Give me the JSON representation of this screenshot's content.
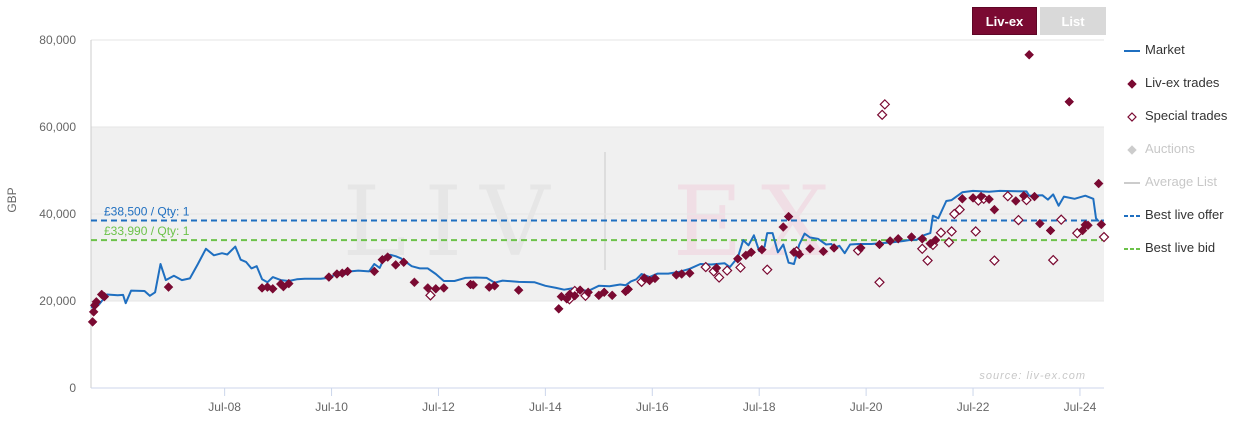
{
  "tabs": [
    {
      "label": "Liv-ex",
      "active": true
    },
    {
      "label": "List",
      "active": false
    }
  ],
  "legend": [
    {
      "label": "Market",
      "symbol": "line",
      "color": "#1f6fc0"
    },
    {
      "label": "Liv-ex trades",
      "symbol": "diamond-filled",
      "color": "#7a0a32"
    },
    {
      "label": "Special trades",
      "symbol": "diamond-open",
      "color": "#7a0a32"
    },
    {
      "label": "Auctions",
      "symbol": "diamond-filled",
      "color": "#cccccc",
      "dimmed": true
    },
    {
      "label": "Average List",
      "symbol": "line",
      "color": "#cccccc",
      "dimmed": true
    },
    {
      "label": "Best live offer",
      "symbol": "dashed",
      "color": "#1f6fc0"
    },
    {
      "label": "Best live bid",
      "symbol": "dashed",
      "color": "#6cc24a"
    }
  ],
  "chart_data": {
    "type": "line",
    "ylabel": "GBP",
    "ylim": [
      0,
      80000
    ],
    "yticks": [
      {
        "value": 0,
        "label": "0"
      },
      {
        "value": 20000,
        "label": "20,000"
      },
      {
        "value": 40000,
        "label": "40,000"
      },
      {
        "value": 60000,
        "label": "60,000"
      },
      {
        "value": 80000,
        "label": "80,000"
      }
    ],
    "xlim": [
      2006.0,
      2024.95
    ],
    "xticks": [
      {
        "value": 2008.5,
        "label": "Jul-08"
      },
      {
        "value": 2010.5,
        "label": "Jul-10"
      },
      {
        "value": 2012.5,
        "label": "Jul-12"
      },
      {
        "value": 2014.5,
        "label": "Jul-14"
      },
      {
        "value": 2016.5,
        "label": "Jul-16"
      },
      {
        "value": 2018.5,
        "label": "Jul-18"
      },
      {
        "value": 2020.5,
        "label": "Jul-20"
      },
      {
        "value": 2022.5,
        "label": "Jul-22"
      },
      {
        "value": 2024.5,
        "label": "Jul-24"
      }
    ],
    "shaded_band": [
      20000,
      60000
    ],
    "watermark": "LIV|EX",
    "source": "source: liv-ex.com",
    "best_live_offer": {
      "value": 38500,
      "label": "£38,500 / Qty: 1",
      "color": "#1f6fc0"
    },
    "best_live_bid": {
      "value": 33990,
      "label": "£33,990 / Qty: 1",
      "color": "#6cc24a"
    },
    "market": {
      "name": "Market",
      "color": "#1f6fc0",
      "points": [
        [
          2006.0,
          18500
        ],
        [
          2006.15,
          19200
        ],
        [
          2006.3,
          21500
        ],
        [
          2006.5,
          21300
        ],
        [
          2006.6,
          21400
        ],
        [
          2006.65,
          19500
        ],
        [
          2006.75,
          22400
        ],
        [
          2007.0,
          22300
        ],
        [
          2007.1,
          21200
        ],
        [
          2007.2,
          22000
        ],
        [
          2007.3,
          28500
        ],
        [
          2007.4,
          24800
        ],
        [
          2007.55,
          25800
        ],
        [
          2007.7,
          24800
        ],
        [
          2007.85,
          25200
        ],
        [
          2008.0,
          28500
        ],
        [
          2008.15,
          32000
        ],
        [
          2008.3,
          30500
        ],
        [
          2008.45,
          31000
        ],
        [
          2008.55,
          30700
        ],
        [
          2008.7,
          32500
        ],
        [
          2008.8,
          29500
        ],
        [
          2008.9,
          29000
        ],
        [
          2009.0,
          27500
        ],
        [
          2009.1,
          28000
        ],
        [
          2009.2,
          25000
        ],
        [
          2009.3,
          24300
        ],
        [
          2009.4,
          25500
        ],
        [
          2009.55,
          24800
        ],
        [
          2009.7,
          24600
        ],
        [
          2009.85,
          25000
        ],
        [
          2010.0,
          25100
        ],
        [
          2010.3,
          25100
        ],
        [
          2010.5,
          25400
        ],
        [
          2010.6,
          26800
        ],
        [
          2010.7,
          25800
        ],
        [
          2010.85,
          26800
        ],
        [
          2011.0,
          27000
        ],
        [
          2011.2,
          26800
        ],
        [
          2011.3,
          28500
        ],
        [
          2011.4,
          27600
        ],
        [
          2011.5,
          30300
        ],
        [
          2011.6,
          30600
        ],
        [
          2011.7,
          30300
        ],
        [
          2011.8,
          29800
        ],
        [
          2012.0,
          28000
        ],
        [
          2012.15,
          27500
        ],
        [
          2012.3,
          27500
        ],
        [
          2012.45,
          26200
        ],
        [
          2012.6,
          24600
        ],
        [
          2012.8,
          24600
        ],
        [
          2013.0,
          25300
        ],
        [
          2013.2,
          25400
        ],
        [
          2013.4,
          25300
        ],
        [
          2013.55,
          24200
        ],
        [
          2013.7,
          24700
        ],
        [
          2014.0,
          24400
        ],
        [
          2014.3,
          24300
        ],
        [
          2014.5,
          23500
        ],
        [
          2014.7,
          23000
        ],
        [
          2014.85,
          22600
        ],
        [
          2015.0,
          22900
        ],
        [
          2015.15,
          22600
        ],
        [
          2015.3,
          22300
        ],
        [
          2015.5,
          23500
        ],
        [
          2015.7,
          23400
        ],
        [
          2015.9,
          23800
        ],
        [
          2016.0,
          23600
        ],
        [
          2016.1,
          24500
        ],
        [
          2016.2,
          25000
        ],
        [
          2016.3,
          26200
        ],
        [
          2016.45,
          25500
        ],
        [
          2016.6,
          26300
        ],
        [
          2016.8,
          26300
        ],
        [
          2017.0,
          26700
        ],
        [
          2017.2,
          27400
        ],
        [
          2017.4,
          28500
        ],
        [
          2017.6,
          28400
        ],
        [
          2017.85,
          28700
        ],
        [
          2017.95,
          27800
        ],
        [
          2018.1,
          30000
        ],
        [
          2018.2,
          34000
        ],
        [
          2018.3,
          32800
        ],
        [
          2018.4,
          35100
        ],
        [
          2018.5,
          31500
        ],
        [
          2018.6,
          32500
        ],
        [
          2018.65,
          35600
        ],
        [
          2018.75,
          35600
        ],
        [
          2018.85,
          31200
        ],
        [
          2018.95,
          33000
        ],
        [
          2019.05,
          28800
        ],
        [
          2019.15,
          28500
        ],
        [
          2019.25,
          33000
        ],
        [
          2019.35,
          35500
        ],
        [
          2019.45,
          34600
        ],
        [
          2019.6,
          34300
        ],
        [
          2019.75,
          33000
        ],
        [
          2019.85,
          33100
        ],
        [
          2019.9,
          32200
        ],
        [
          2020.0,
          32700
        ],
        [
          2020.1,
          31000
        ],
        [
          2020.2,
          33000
        ],
        [
          2020.35,
          33100
        ],
        [
          2020.6,
          33100
        ],
        [
          2020.8,
          33300
        ],
        [
          2021.0,
          33500
        ],
        [
          2021.2,
          33800
        ],
        [
          2021.3,
          34000
        ],
        [
          2021.45,
          34100
        ],
        [
          2021.55,
          35000
        ],
        [
          2021.7,
          35600
        ],
        [
          2021.75,
          39600
        ],
        [
          2021.85,
          39000
        ],
        [
          2022.0,
          43000
        ],
        [
          2022.1,
          43200
        ],
        [
          2022.3,
          45000
        ],
        [
          2022.5,
          45300
        ],
        [
          2022.8,
          45100
        ],
        [
          2023.0,
          45300
        ],
        [
          2023.5,
          45200
        ],
        [
          2023.55,
          44200
        ],
        [
          2023.8,
          44300
        ],
        [
          2023.9,
          43300
        ],
        [
          2024.0,
          44500
        ],
        [
          2024.1,
          41900
        ],
        [
          2024.2,
          44000
        ],
        [
          2024.4,
          43500
        ],
        [
          2024.6,
          44200
        ],
        [
          2024.75,
          43500
        ],
        [
          2024.8,
          39000
        ],
        [
          2024.85,
          38300
        ]
      ]
    },
    "livex_trades": {
      "name": "Liv-ex trades",
      "color": "#7a0a32",
      "points": [
        [
          2006.03,
          15200
        ],
        [
          2006.05,
          17500
        ],
        [
          2006.07,
          19000
        ],
        [
          2006.1,
          19800
        ],
        [
          2006.2,
          21500
        ],
        [
          2006.25,
          21000
        ],
        [
          2007.45,
          23200
        ],
        [
          2009.2,
          23000
        ],
        [
          2009.3,
          23200
        ],
        [
          2009.4,
          22800
        ],
        [
          2009.55,
          23900
        ],
        [
          2009.6,
          23300
        ],
        [
          2009.7,
          24000
        ],
        [
          2010.45,
          25500
        ],
        [
          2010.6,
          26200
        ],
        [
          2010.7,
          26400
        ],
        [
          2010.8,
          26800
        ],
        [
          2011.3,
          26800
        ],
        [
          2011.45,
          29500
        ],
        [
          2011.55,
          30100
        ],
        [
          2011.7,
          28300
        ],
        [
          2011.85,
          28900
        ],
        [
          2012.05,
          24300
        ],
        [
          2012.3,
          23000
        ],
        [
          2012.45,
          22800
        ],
        [
          2012.6,
          23000
        ],
        [
          2013.1,
          23800
        ],
        [
          2013.15,
          23700
        ],
        [
          2013.45,
          23200
        ],
        [
          2013.55,
          23500
        ],
        [
          2014.0,
          22500
        ],
        [
          2014.75,
          18200
        ],
        [
          2014.8,
          21000
        ],
        [
          2014.9,
          20500
        ],
        [
          2014.95,
          21500
        ],
        [
          2015.05,
          21200
        ],
        [
          2015.15,
          22500
        ],
        [
          2015.3,
          22000
        ],
        [
          2015.5,
          21300
        ],
        [
          2015.6,
          22000
        ],
        [
          2015.75,
          21300
        ],
        [
          2016.0,
          22200
        ],
        [
          2016.05,
          22700
        ],
        [
          2016.35,
          25300
        ],
        [
          2016.45,
          24700
        ],
        [
          2016.55,
          25200
        ],
        [
          2016.95,
          26000
        ],
        [
          2017.05,
          26200
        ],
        [
          2017.2,
          26400
        ],
        [
          2017.7,
          27600
        ],
        [
          2018.1,
          29700
        ],
        [
          2018.25,
          30500
        ],
        [
          2018.35,
          31200
        ],
        [
          2018.55,
          31800
        ],
        [
          2018.95,
          37000
        ],
        [
          2019.05,
          39400
        ],
        [
          2019.15,
          31200
        ],
        [
          2019.25,
          30700
        ],
        [
          2019.45,
          32000
        ],
        [
          2019.7,
          31400
        ],
        [
          2019.9,
          32200
        ],
        [
          2020.4,
          32200
        ],
        [
          2020.75,
          33000
        ],
        [
          2020.95,
          33800
        ],
        [
          2021.1,
          34300
        ],
        [
          2021.35,
          34700
        ],
        [
          2021.55,
          34300
        ],
        [
          2021.7,
          33200
        ],
        [
          2021.8,
          34000
        ],
        [
          2022.3,
          43500
        ],
        [
          2022.5,
          43700
        ],
        [
          2022.65,
          44000
        ],
        [
          2022.8,
          43400
        ],
        [
          2022.9,
          41000
        ],
        [
          2023.3,
          43000
        ],
        [
          2023.45,
          44200
        ],
        [
          2023.65,
          44000
        ],
        [
          2023.75,
          37800
        ],
        [
          2023.95,
          36200
        ],
        [
          2024.3,
          65800
        ],
        [
          2024.55,
          36200
        ],
        [
          2024.6,
          37500
        ],
        [
          2024.65,
          37400
        ],
        [
          2024.85,
          47000
        ],
        [
          2024.9,
          37600
        ],
        [
          2023.55,
          76600
        ]
      ]
    },
    "special_trades": {
      "name": "Special trades",
      "color": "#7a0a32",
      "points": [
        [
          2012.35,
          21300
        ],
        [
          2014.95,
          20400
        ],
        [
          2015.05,
          22300
        ],
        [
          2015.25,
          21200
        ],
        [
          2016.3,
          24400
        ],
        [
          2017.5,
          27800
        ],
        [
          2017.65,
          26800
        ],
        [
          2017.75,
          25400
        ],
        [
          2017.9,
          27000
        ],
        [
          2018.15,
          27700
        ],
        [
          2018.65,
          27200
        ],
        [
          2019.2,
          31400
        ],
        [
          2020.35,
          31600
        ],
        [
          2020.75,
          24300
        ],
        [
          2020.8,
          62800
        ],
        [
          2020.85,
          65200
        ],
        [
          2021.55,
          32000
        ],
        [
          2021.65,
          29300
        ],
        [
          2021.75,
          32900
        ],
        [
          2021.9,
          35700
        ],
        [
          2022.05,
          33500
        ],
        [
          2022.1,
          36000
        ],
        [
          2022.15,
          40000
        ],
        [
          2022.25,
          41000
        ],
        [
          2022.55,
          36000
        ],
        [
          2022.9,
          29300
        ],
        [
          2023.15,
          44100
        ],
        [
          2023.35,
          38600
        ],
        [
          2023.5,
          43200
        ],
        [
          2024.0,
          29400
        ],
        [
          2024.15,
          38700
        ],
        [
          2024.45,
          35600
        ],
        [
          2024.95,
          34700
        ],
        [
          2022.6,
          43100
        ],
        [
          2022.7,
          43500
        ]
      ]
    }
  }
}
